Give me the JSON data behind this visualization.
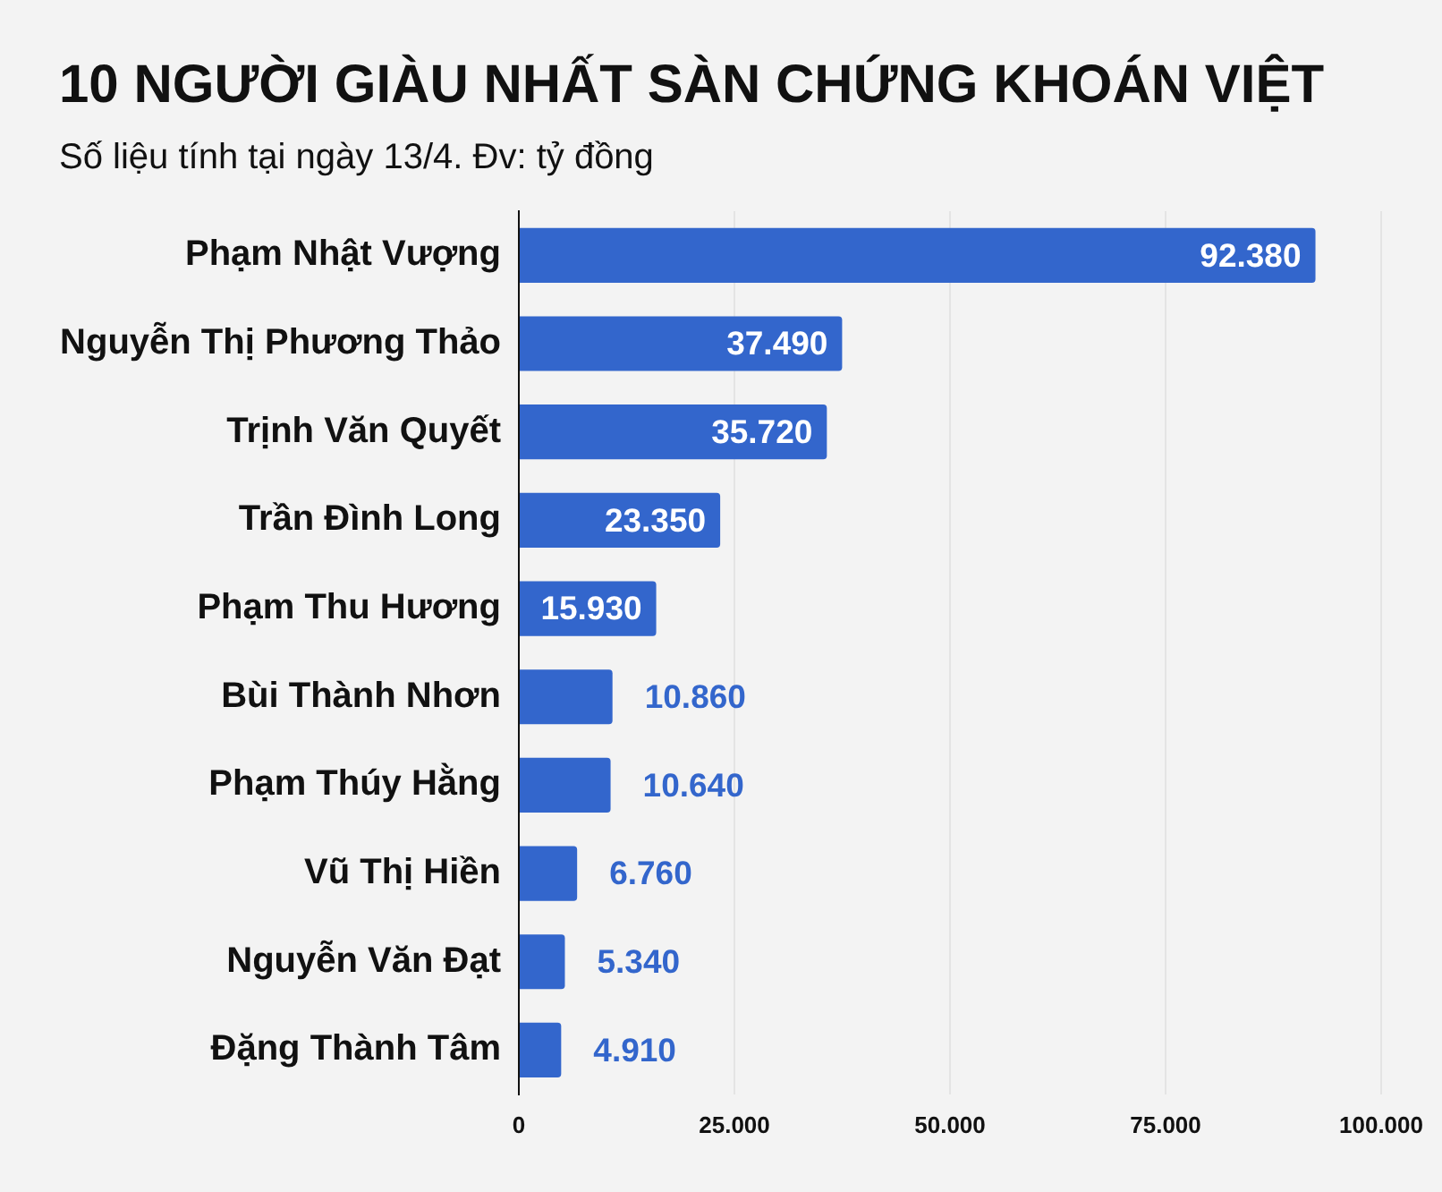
{
  "chart_data": {
    "type": "bar",
    "orientation": "horizontal",
    "title": "10 NGƯỜI GIÀU NHẤT SÀN CHỨNG KHOÁN VIỆT",
    "subtitle": "Số liệu tính tại ngày 13/4. Đv: tỷ đồng",
    "categories": [
      "Phạm Nhật Vượng",
      "Nguyễn Thị Phương Thảo",
      "Trịnh Văn Quyết",
      "Trần Đình Long",
      "Phạm Thu Hương",
      "Bùi Thành Nhơn",
      "Phạm Thúy Hằng",
      "Vũ Thị Hiền",
      "Nguyễn Văn Đạt",
      "Đặng Thành Tâm"
    ],
    "values": [
      92380,
      37490,
      35720,
      23350,
      15930,
      10860,
      10640,
      6760,
      5340,
      4910
    ],
    "value_labels": [
      "92.380",
      "37.490",
      "35.720",
      "23.350",
      "15.930",
      "10.860",
      "10.640",
      "6.760",
      "5.340",
      "4.910"
    ],
    "color": "#3366cc",
    "xlim": [
      0,
      100000
    ],
    "xticks": [
      0,
      {
        "value": 25000,
        "label": "25.000"
      },
      {
        "value": 50000,
        "label": "50.000"
      },
      {
        "value": 75000,
        "label": "75.000"
      },
      {
        "value": 100000,
        "label": "100.000"
      }
    ],
    "grid": "x"
  }
}
